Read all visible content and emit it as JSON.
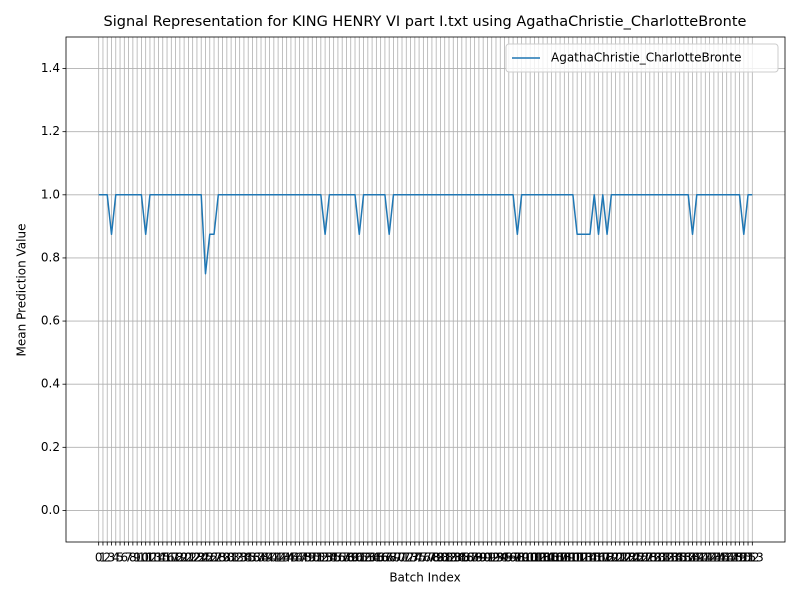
{
  "chart_data": {
    "type": "line",
    "title": "Signal Representation for KING HENRY VI part I.txt using AgathaChristie_CharlotteBronte",
    "xlabel": "Batch Index",
    "ylabel": "Mean Prediction Value",
    "x": [
      0,
      1,
      2,
      3,
      4,
      5,
      6,
      7,
      8,
      9,
      10,
      11,
      12,
      13,
      14,
      15,
      16,
      17,
      18,
      19,
      20,
      21,
      22,
      23,
      24,
      25,
      26,
      27,
      28,
      29,
      30,
      31,
      32,
      33,
      34,
      35,
      36,
      37,
      38,
      39,
      40,
      41,
      42,
      43,
      44,
      45,
      46,
      47,
      48,
      49,
      50,
      51,
      52,
      53,
      54,
      55,
      56,
      57,
      58,
      59,
      60,
      61,
      62,
      63,
      64,
      65,
      66,
      67,
      68,
      69,
      70,
      71,
      72,
      73,
      74,
      75,
      76,
      77,
      78,
      79,
      80,
      81,
      82,
      83,
      84,
      85,
      86,
      87,
      88,
      89,
      90,
      91,
      92,
      93,
      94,
      95,
      96,
      97,
      98,
      99,
      100,
      101,
      102,
      103,
      104,
      105,
      106,
      107,
      108,
      109,
      110,
      111,
      112,
      113,
      114,
      115,
      116,
      117,
      118,
      119,
      120,
      121,
      122,
      123,
      124,
      125,
      126,
      127,
      128,
      129,
      130,
      131,
      132,
      133,
      134,
      135,
      136,
      137,
      138,
      139,
      140,
      141,
      142,
      143,
      144,
      145,
      146,
      147,
      148,
      149,
      150,
      151,
      152,
      153
    ],
    "series": [
      {
        "name": "AgathaChristie_CharlotteBronte",
        "color": "#1f77b4",
        "values": [
          1,
          1,
          1,
          0.875,
          1,
          1,
          1,
          1,
          1,
          1,
          1,
          0.875,
          1,
          1,
          1,
          1,
          1,
          1,
          1,
          1,
          1,
          1,
          1,
          1,
          1,
          0.75,
          0.875,
          0.875,
          1,
          1,
          1,
          1,
          1,
          1,
          1,
          1,
          1,
          1,
          1,
          1,
          1,
          1,
          1,
          1,
          1,
          1,
          1,
          1,
          1,
          1,
          1,
          1,
          1,
          0.875,
          1,
          1,
          1,
          1,
          1,
          1,
          1,
          0.875,
          1,
          1,
          1,
          1,
          1,
          1,
          0.875,
          1,
          1,
          1,
          1,
          1,
          1,
          1,
          1,
          1,
          1,
          1,
          1,
          1,
          1,
          1,
          1,
          1,
          1,
          1,
          1,
          1,
          1,
          1,
          1,
          1,
          1,
          1,
          1,
          1,
          0.875,
          1,
          1,
          1,
          1,
          1,
          1,
          1,
          1,
          1,
          1,
          1,
          1,
          1,
          0.875,
          0.875,
          0.875,
          0.875,
          1,
          0.875,
          1,
          0.875,
          1,
          1,
          1,
          1,
          1,
          1,
          1,
          1,
          1,
          1,
          1,
          1,
          1,
          1,
          1,
          1,
          1,
          1,
          1,
          0.875,
          1,
          1,
          1,
          1,
          1,
          1,
          1,
          1,
          1,
          1,
          1,
          0.875,
          1,
          1
        ]
      }
    ],
    "xlim": [
      -7.65,
      160.65
    ],
    "xticks": [
      0,
      1,
      2,
      3,
      4,
      5,
      6,
      7,
      8,
      9,
      10,
      11,
      12,
      13,
      14,
      15,
      16,
      17,
      18,
      19,
      20,
      21,
      22,
      23,
      24,
      25,
      26,
      27,
      28,
      29,
      30,
      31,
      32,
      33,
      34,
      35,
      36,
      37,
      38,
      39,
      40,
      41,
      42,
      43,
      44,
      45,
      46,
      47,
      48,
      49,
      50,
      51,
      52,
      53,
      54,
      55,
      56,
      57,
      58,
      59,
      60,
      61,
      62,
      63,
      64,
      65,
      66,
      67,
      68,
      69,
      70,
      71,
      72,
      73,
      74,
      75,
      76,
      77,
      78,
      79,
      80,
      81,
      82,
      83,
      84,
      85,
      86,
      87,
      88,
      89,
      90,
      91,
      92,
      93,
      94,
      95,
      96,
      97,
      98,
      99,
      100,
      101,
      102,
      103,
      104,
      105,
      106,
      107,
      108,
      109,
      110,
      111,
      112,
      113,
      114,
      115,
      116,
      117,
      118,
      119,
      120,
      121,
      122,
      123,
      124,
      125,
      126,
      127,
      128,
      129,
      130,
      131,
      132,
      133,
      134,
      135,
      136,
      137,
      138,
      139,
      140,
      141,
      142,
      143,
      144,
      145,
      146,
      147,
      148,
      149,
      150,
      151,
      152,
      153
    ],
    "ylim": [
      -0.1,
      1.5
    ],
    "yticks": [
      {
        "value": 0,
        "label": "0.0"
      },
      0.2,
      0.4,
      0.6,
      0.8,
      {
        "value": 1,
        "label": "1.0"
      },
      1.2,
      1.4
    ],
    "grid": true,
    "legend": "upper right"
  }
}
